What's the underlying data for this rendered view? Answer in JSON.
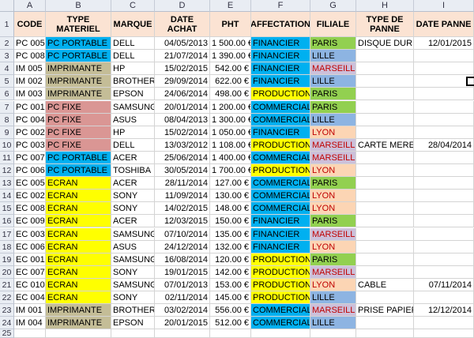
{
  "columns": [
    "A",
    "B",
    "C",
    "D",
    "E",
    "F",
    "G",
    "H",
    "I"
  ],
  "header_row": [
    "CODE",
    "TYPE MATERIEL",
    "MARQUE",
    "DATE ACHAT",
    "PHT",
    "AFFECTATION",
    "FILIALE",
    "TYPE DE PANNE",
    "DATE PANNE"
  ],
  "rows": [
    {
      "n": "2",
      "code": "PC 005",
      "type": "PC PORTABLE",
      "marque": "DELL",
      "date": "04/05/2013",
      "pht": "1 500.00 €",
      "aff": "FINANCIER",
      "fil": "PARIS",
      "panne": "DISQUE DUR",
      "dpanne": "12/01/2015"
    },
    {
      "n": "3",
      "code": "PC 008",
      "type": "PC PORTABLE",
      "marque": "DELL",
      "date": "21/07/2014",
      "pht": "1 390.00 €",
      "aff": "FINANCIER",
      "fil": "LILLE",
      "panne": "",
      "dpanne": ""
    },
    {
      "n": "4",
      "code": "IM 005",
      "type": "IMPRIMANTE",
      "marque": "HP",
      "date": "15/02/2015",
      "pht": "542.00 €",
      "aff": "FINANCIER",
      "fil": "MARSEILLE",
      "panne": "",
      "dpanne": ""
    },
    {
      "n": "5",
      "code": "IM 002",
      "type": "IMPRIMANTE",
      "marque": "BROTHER",
      "date": "29/09/2014",
      "pht": "622.00 €",
      "aff": "FINANCIER",
      "fil": "LILLE",
      "panne": "",
      "dpanne": ""
    },
    {
      "n": "6",
      "code": "IM 003",
      "type": "IMPRIMANTE",
      "marque": "EPSON",
      "date": "24/06/2014",
      "pht": "498.00 €",
      "aff": "PRODUCTION",
      "fil": "PARIS",
      "panne": "",
      "dpanne": ""
    },
    {
      "n": "7",
      "code": "PC 001",
      "type": "PC FIXE",
      "marque": "SAMSUNG",
      "date": "20/01/2014",
      "pht": "1 200.00 €",
      "aff": "COMMERCIAL",
      "fil": "PARIS",
      "panne": "",
      "dpanne": ""
    },
    {
      "n": "8",
      "code": "PC 004",
      "type": "PC FIXE",
      "marque": "ASUS",
      "date": "08/04/2013",
      "pht": "1 300.00 €",
      "aff": "COMMERCIAL",
      "fil": "LILLE",
      "panne": "",
      "dpanne": ""
    },
    {
      "n": "9",
      "code": "PC 002",
      "type": "PC FIXE",
      "marque": "HP",
      "date": "15/02/2014",
      "pht": "1 050.00 €",
      "aff": "FINANCIER",
      "fil": "LYON",
      "panne": "",
      "dpanne": ""
    },
    {
      "n": "10",
      "code": "PC 003",
      "type": "PC FIXE",
      "marque": "DELL",
      "date": "13/03/2012",
      "pht": "1 108.00 €",
      "aff": "PRODUCTION",
      "fil": "MARSEILLE",
      "panne": "CARTE MERE",
      "dpanne": "28/04/2014"
    },
    {
      "n": "11",
      "code": "PC 007",
      "type": "PC PORTABLE",
      "marque": "ACER",
      "date": "25/06/2014",
      "pht": "1 400.00 €",
      "aff": "COMMERCIAL",
      "fil": "MARSEILLE",
      "panne": "",
      "dpanne": ""
    },
    {
      "n": "12",
      "code": "PC 006",
      "type": "PC PORTABLE",
      "marque": "TOSHIBA",
      "date": "30/05/2014",
      "pht": "1 700.00 €",
      "aff": "PRODUCTION",
      "fil": "LYON",
      "panne": "",
      "dpanne": ""
    },
    {
      "n": "13",
      "code": "EC 005",
      "type": "ECRAN",
      "marque": "ACER",
      "date": "28/11/2014",
      "pht": "127.00 €",
      "aff": "COMMERCIAL",
      "fil": "PARIS",
      "panne": "",
      "dpanne": ""
    },
    {
      "n": "14",
      "code": "EC 002",
      "type": "ECRAN",
      "marque": "SONY",
      "date": "11/09/2014",
      "pht": "130.00 €",
      "aff": "COMMERCIAL",
      "fil": "LYON",
      "panne": "",
      "dpanne": ""
    },
    {
      "n": "15",
      "code": "EC 008",
      "type": "ECRAN",
      "marque": "SONY",
      "date": "14/02/2015",
      "pht": "148.00 €",
      "aff": "COMMERCIAL",
      "fil": "LYON",
      "panne": "",
      "dpanne": ""
    },
    {
      "n": "16",
      "code": "EC 009",
      "type": "ECRAN",
      "marque": "ACER",
      "date": "12/03/2015",
      "pht": "150.00 €",
      "aff": "FINANCIER",
      "fil": "PARIS",
      "panne": "",
      "dpanne": ""
    },
    {
      "n": "17",
      "code": "EC 003",
      "type": "ECRAN",
      "marque": "SAMSUNG",
      "date": "07/10/2014",
      "pht": "135.00 €",
      "aff": "FINANCIER",
      "fil": "MARSEILLE",
      "panne": "",
      "dpanne": ""
    },
    {
      "n": "18",
      "code": "EC 006",
      "type": "ECRAN",
      "marque": "ASUS",
      "date": "24/12/2014",
      "pht": "132.00 €",
      "aff": "FINANCIER",
      "fil": "LYON",
      "panne": "",
      "dpanne": ""
    },
    {
      "n": "19",
      "code": "EC 001",
      "type": "ECRAN",
      "marque": "SAMSUNG",
      "date": "16/08/2014",
      "pht": "120.00 €",
      "aff": "PRODUCTION",
      "fil": "PARIS",
      "panne": "",
      "dpanne": ""
    },
    {
      "n": "20",
      "code": "EC 007",
      "type": "ECRAN",
      "marque": "SONY",
      "date": "19/01/2015",
      "pht": "142.00 €",
      "aff": "PRODUCTION",
      "fil": "MARSEILLE",
      "panne": "",
      "dpanne": ""
    },
    {
      "n": "21",
      "code": "EC 010",
      "type": "ECRAN",
      "marque": "SAMSUNG",
      "date": "07/01/2013",
      "pht": "153.00 €",
      "aff": "PRODUCTION",
      "fil": "LYON",
      "panne": "CABLE",
      "dpanne": "07/11/2014"
    },
    {
      "n": "22",
      "code": "EC 004",
      "type": "ECRAN",
      "marque": "SONY",
      "date": "02/11/2014",
      "pht": "145.00 €",
      "aff": "PRODUCTION",
      "fil": "LILLE",
      "panne": "",
      "dpanne": ""
    },
    {
      "n": "23",
      "code": "IM 001",
      "type": "IMPRIMANTE",
      "marque": "BROTHER",
      "date": "03/02/2014",
      "pht": "556.00 €",
      "aff": "COMMERCIAL",
      "fil": "MARSEILLE",
      "panne": "PRISE PAPIER",
      "dpanne": "12/12/2014"
    },
    {
      "n": "24",
      "code": "IM 004",
      "type": "IMPRIMANTE",
      "marque": "EPSON",
      "date": "20/01/2015",
      "pht": "512.00 €",
      "aff": "COMMERCIAL",
      "fil": "LILLE",
      "panne": "",
      "dpanne": ""
    }
  ],
  "extra_row_numbers": [
    "1",
    "25"
  ],
  "colors": {
    "header_bg": "#fbe3d3",
    "type": {
      "PC PORTABLE": "#00b0f0",
      "IMPRIMANTE": "#c4bd97",
      "PC FIXE": "#da9694",
      "ECRAN": "#ffff00"
    },
    "aff": {
      "FINANCIER": "#00b0f0",
      "PRODUCTION": "#ffff00",
      "COMMERCIAL": "#00b0f0"
    },
    "fil_bg": {
      "PARIS": "#92d050",
      "LILLE": "#8db4e2",
      "MARSEILLE": "#ccc0da",
      "LYON": "#fcd5b4"
    },
    "fil_fg": {
      "PARIS": "#000000",
      "LILLE": "#000000",
      "MARSEILLE": "#c00000",
      "LYON": "#c00000"
    }
  }
}
